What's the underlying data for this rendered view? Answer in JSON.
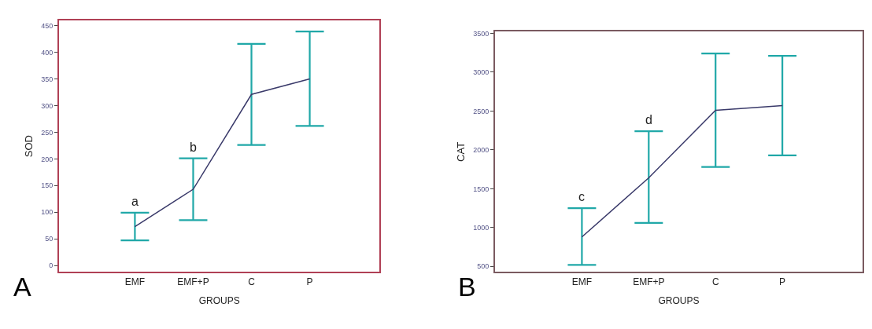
{
  "chart_data": [
    {
      "type": "line",
      "categories": [
        "EMF",
        "EMF+P",
        "C",
        "P"
      ],
      "xlabel": "GROUPS",
      "ylabel": "SOD",
      "ylim": [
        -12,
        460
      ],
      "yticks": [
        0,
        50,
        100,
        150,
        200,
        250,
        300,
        350,
        400,
        450
      ],
      "marker": "none",
      "series": [
        {
          "color": "#3a3a6a",
          "values": [
            73,
            143,
            321,
            350
          ],
          "errors": [
            [
              47,
              99
            ],
            [
              85,
              201
            ],
            [
              226,
              416
            ],
            [
              262,
              439
            ]
          ]
        }
      ],
      "annotations": [
        {
          "text": "a",
          "x": "EMF",
          "y": 99
        },
        {
          "text": "b",
          "x": "EMF+P",
          "y": 201
        },
        "A"
      ]
    },
    {
      "type": "line",
      "categories": [
        "EMF",
        "EMF+P",
        "C",
        "P"
      ],
      "xlabel": "GROUPS",
      "ylabel": "CAT",
      "ylim": [
        430,
        3520
      ],
      "yticks": [
        500,
        1000,
        1500,
        2000,
        2500,
        3000,
        3500
      ],
      "marker": "none",
      "series": [
        {
          "color": "#3a3a6a",
          "values": [
            880,
            1640,
            2510,
            2570
          ],
          "errors": [
            [
              520,
              1250
            ],
            [
              1060,
              2240
            ],
            [
              1780,
              3240
            ],
            [
              1930,
              3210
            ]
          ]
        }
      ],
      "annotations": [
        {
          "text": "c",
          "x": "EMF",
          "y": 1250
        },
        {
          "text": "d",
          "x": "EMF+P",
          "y": 2240
        },
        "B"
      ]
    }
  ]
}
